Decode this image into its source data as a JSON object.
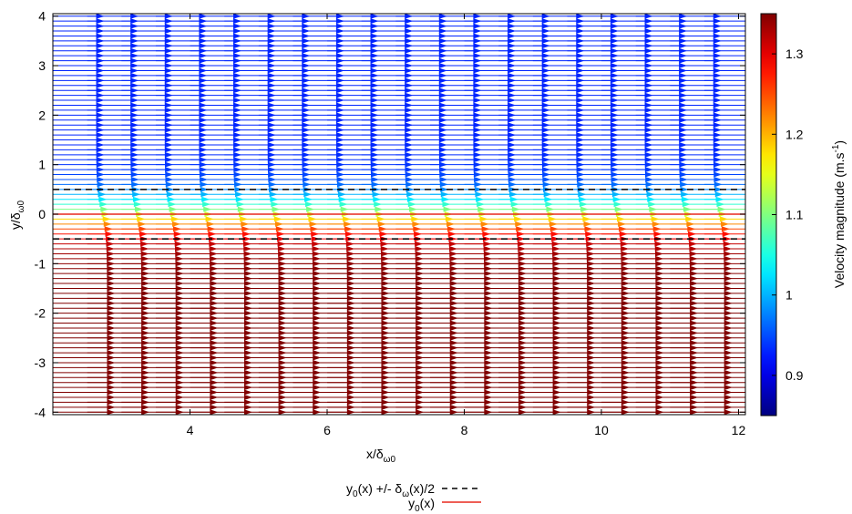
{
  "chart_data": {
    "type": "quiver",
    "title": "",
    "xlabel": {
      "base": "x/δ",
      "sub": "ω0"
    },
    "ylabel": {
      "base": "y/δ",
      "sub": "ω0"
    },
    "xlim": [
      2.0,
      12.1
    ],
    "ylim": [
      -4.05,
      4.05
    ],
    "xticks": [
      4,
      6,
      8,
      10,
      12
    ],
    "yticks": [
      -4,
      -3,
      -2,
      -1,
      0,
      1,
      2,
      3,
      4
    ],
    "grid": false,
    "profile_x_positions": [
      2.4,
      2.9,
      3.4,
      3.9,
      4.4,
      4.9,
      5.4,
      5.9,
      6.4,
      6.9,
      7.4,
      7.9,
      8.4,
      8.9,
      9.4,
      9.9,
      10.4,
      10.9,
      11.4,
      11.9
    ],
    "profile_y_range": [
      -4.0,
      4.0
    ],
    "profile_y_step": 0.1,
    "velocity_model": {
      "u_upper": 0.93,
      "u_lower": 1.35,
      "shear_layer_center": 0,
      "vorticity_thickness": 1.0
    },
    "colorbar": {
      "label": "Velocity magnitude (m.s",
      "label_sup": "-1",
      "label_end": ")",
      "range": [
        0.85,
        1.35
      ],
      "ticks": [
        "0.9",
        "1",
        "1.1",
        "1.2",
        "1.3"
      ],
      "tick_values": [
        0.9,
        1.0,
        1.1,
        1.2,
        1.3
      ],
      "colormap": "jet"
    },
    "series": [
      {
        "name": "y0(x) +/- δω(x)/2",
        "kind": "dashed",
        "color": "#000000",
        "y_values": [
          0.5,
          -0.5
        ]
      },
      {
        "name": "y0(x)",
        "kind": "solid",
        "color": "#e8281e",
        "y_values": [
          0.0
        ]
      }
    ],
    "legend": {
      "placement": "bottom-center",
      "entries": [
        {
          "label_base": "y",
          "label_sub": "0",
          "label_mid": "(x) +/- δ",
          "label_sub2": "ω",
          "label_end": "(x)/2"
        },
        {
          "label_base": "y",
          "label_sub": "0",
          "label_end": "(x)"
        }
      ]
    }
  }
}
